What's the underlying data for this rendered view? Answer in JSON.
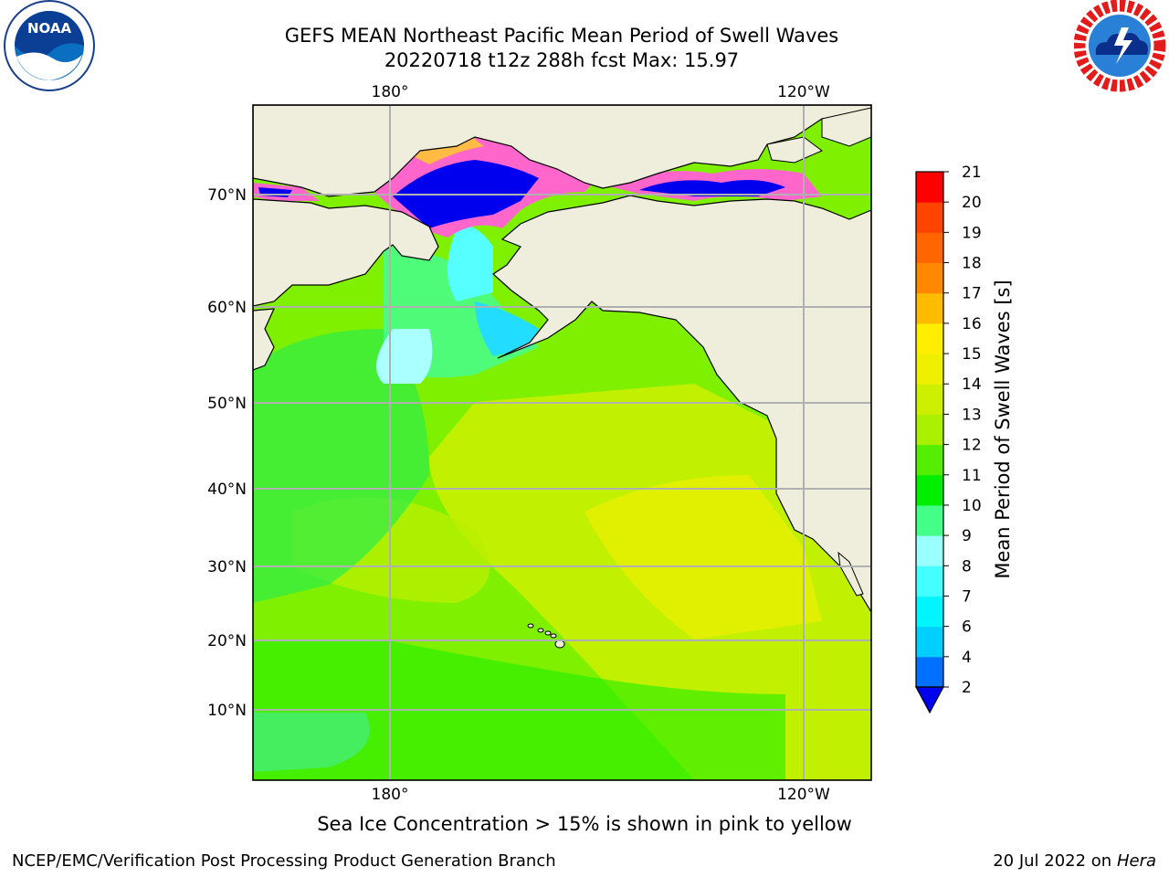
{
  "header": {
    "title_line1": "GEFS MEAN Northeast Pacific Mean Period of Swell Waves",
    "title_line2": "20220718 t12z 288h fcst   Max: 15.97"
  },
  "logos": {
    "left": {
      "name": "noaa-logo",
      "text": "NOAA"
    },
    "right": {
      "name": "nws-logo"
    }
  },
  "map": {
    "lon_ticks_top": [
      "180°",
      "120°W"
    ],
    "lon_ticks_bottom": [
      "180°",
      "120°W"
    ],
    "lat_ticks": [
      "70°N",
      "60°N",
      "50°N",
      "40°N",
      "30°N",
      "20°N",
      "10°N"
    ],
    "colors": {
      "land": "#efeedc",
      "ocean_base": "#7ef000",
      "grid": "#b0b0b0"
    }
  },
  "colorbar": {
    "label": "Mean Period of Swell Waves [s]",
    "tick_labels": [
      "2",
      "4",
      "6",
      "7",
      "8",
      "9",
      "10",
      "11",
      "12",
      "13",
      "14",
      "15",
      "16",
      "17",
      "18",
      "19",
      "20",
      "21"
    ],
    "bands": [
      {
        "from": 2,
        "to": 4,
        "color": "#0070ff"
      },
      {
        "from": 4,
        "to": 6,
        "color": "#00cfff"
      },
      {
        "from": 6,
        "to": 7,
        "color": "#00f5ff"
      },
      {
        "from": 7,
        "to": 8,
        "color": "#44ffff"
      },
      {
        "from": 8,
        "to": 9,
        "color": "#99ffff"
      },
      {
        "from": 9,
        "to": 10,
        "color": "#44ff88"
      },
      {
        "from": 10,
        "to": 11,
        "color": "#00ee00"
      },
      {
        "from": 11,
        "to": 12,
        "color": "#55ee00"
      },
      {
        "from": 12,
        "to": 13,
        "color": "#aaf000"
      },
      {
        "from": 13,
        "to": 14,
        "color": "#ccf000"
      },
      {
        "from": 14,
        "to": 15,
        "color": "#eef000"
      },
      {
        "from": 15,
        "to": 16,
        "color": "#ffee00"
      },
      {
        "from": 16,
        "to": 17,
        "color": "#ffbb00"
      },
      {
        "from": 17,
        "to": 18,
        "color": "#ff8800"
      },
      {
        "from": 18,
        "to": 19,
        "color": "#ff6600"
      },
      {
        "from": 19,
        "to": 20,
        "color": "#ff4400"
      },
      {
        "from": 20,
        "to": 21,
        "color": "#ff0000"
      }
    ],
    "under_color": "#0000ee"
  },
  "footer": {
    "note": "Sea Ice Concentration > 15% is shown in pink to yellow",
    "credit": "NCEP/EMC/Verification Post Processing Product Generation Branch",
    "date": "20 Jul 2022 on",
    "host": "Hera"
  }
}
